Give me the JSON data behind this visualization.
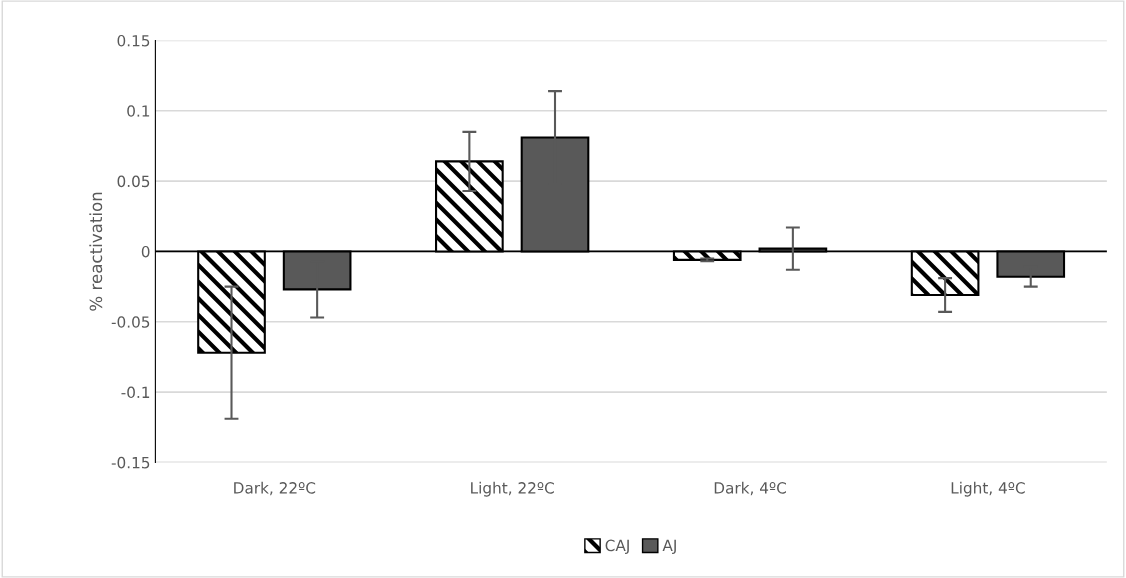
{
  "chart_data": {
    "type": "bar",
    "ylabel": "% reactivation",
    "categories": [
      "Dark, 22ºC",
      "Light, 22ºC",
      "Dark, 4ºC",
      "Light, 4ºC"
    ],
    "series": [
      {
        "name": "CAJ",
        "color": "#000000",
        "values": [
          -0.072,
          0.064,
          -0.006,
          -0.031
        ],
        "errors": [
          0.047,
          0.021,
          0.001,
          0.012
        ]
      },
      {
        "name": "AJ",
        "color": "#595959",
        "values": [
          -0.027,
          0.081,
          0.002,
          -0.018
        ],
        "errors": [
          0.02,
          0.033,
          0.015,
          0.007
        ]
      }
    ],
    "ylim": [
      -0.15,
      0.15
    ],
    "yticks": [
      -0.15,
      -0.1,
      -0.05,
      0,
      0.05,
      0.1,
      0.15
    ],
    "grid": "y",
    "legend": "bottom"
  }
}
